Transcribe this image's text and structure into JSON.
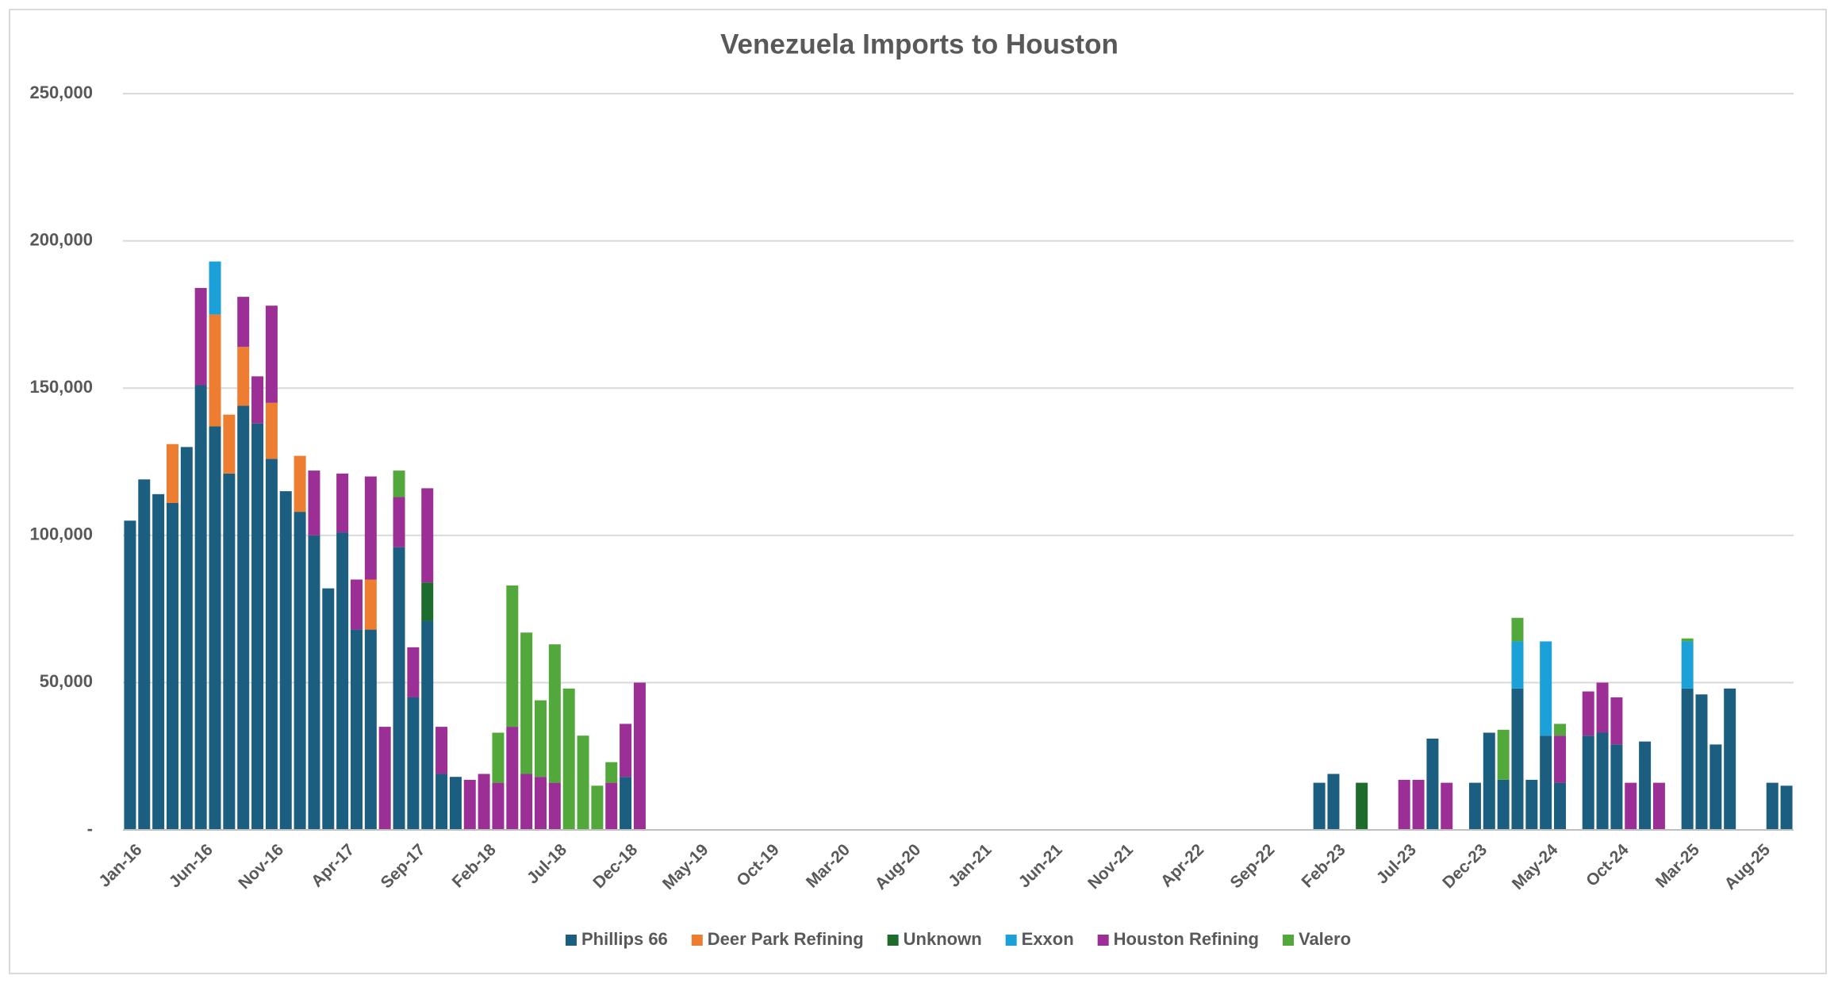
{
  "chart_data": {
    "type": "stacked_bar",
    "title": "Venezuela Imports to Houston",
    "categories": [
      "Jan-16",
      null,
      null,
      null,
      null,
      "Jun-16",
      null,
      null,
      null,
      null,
      "Nov-16",
      null,
      null,
      null,
      null,
      "Apr-17",
      null,
      null,
      null,
      null,
      "Sep-17",
      null,
      null,
      null,
      null,
      "Feb-18",
      null,
      null,
      null,
      null,
      "Jul-18",
      null,
      null,
      null,
      null,
      "Dec-18",
      null,
      null,
      null,
      null,
      "May-19",
      null,
      null,
      null,
      null,
      "Oct-19",
      null,
      null,
      null,
      null,
      "Mar-20",
      null,
      null,
      null,
      null,
      "Aug-20",
      null,
      null,
      null,
      null,
      "Jan-21",
      null,
      null,
      null,
      null,
      "Jun-21",
      null,
      null,
      null,
      null,
      "Nov-21",
      null,
      null,
      null,
      null,
      "Apr-22",
      null,
      null,
      null,
      null,
      "Sep-22",
      null,
      null,
      null,
      null,
      "Feb-23",
      null,
      null,
      null,
      null,
      "Jul-23",
      null,
      null,
      null,
      null,
      "Dec-23",
      null,
      null,
      null,
      null,
      "May-24",
      null,
      null,
      null,
      null,
      "Oct-24",
      null,
      null,
      null,
      null,
      "Mar-25",
      null,
      null,
      null,
      null,
      "Aug-25",
      null,
      null
    ],
    "series": [
      {
        "name": "Phillips 66",
        "color": "#1b5e80",
        "values": [
          105000,
          119000,
          114000,
          111000,
          130000,
          151000,
          137000,
          121000,
          144000,
          138000,
          126000,
          115000,
          108000,
          100000,
          82000,
          101000,
          68000,
          68000,
          null,
          96000,
          45000,
          71000,
          19000,
          18000,
          null,
          null,
          null,
          null,
          null,
          null,
          null,
          null,
          null,
          null,
          null,
          18000,
          null,
          null,
          null,
          null,
          null,
          null,
          null,
          null,
          null,
          null,
          null,
          null,
          null,
          null,
          null,
          null,
          null,
          null,
          null,
          null,
          null,
          null,
          null,
          null,
          null,
          null,
          null,
          null,
          null,
          null,
          null,
          null,
          null,
          null,
          null,
          null,
          null,
          null,
          null,
          null,
          null,
          null,
          null,
          null,
          null,
          null,
          null,
          null,
          16000,
          19000,
          null,
          null,
          null,
          null,
          null,
          null,
          31000,
          null,
          null,
          16000,
          33000,
          17000,
          48000,
          17000,
          32000,
          16000,
          null,
          32000,
          33000,
          29000,
          null,
          30000,
          null,
          null,
          48000,
          46000,
          29000,
          48000,
          null,
          null,
          16000,
          15000
        ]
      },
      {
        "name": "Deer Park Refining",
        "color": "#ed7d31",
        "values": [
          null,
          null,
          null,
          20000,
          null,
          null,
          38000,
          20000,
          20000,
          null,
          19000,
          null,
          19000,
          null,
          null,
          null,
          null,
          17000,
          null,
          null,
          null,
          null,
          null,
          null,
          null,
          null,
          null,
          null,
          null,
          null,
          null,
          null,
          null,
          null,
          null,
          null,
          null,
          null,
          null,
          null,
          null,
          null,
          null,
          null,
          null,
          null,
          null,
          null,
          null,
          null,
          null,
          null,
          null,
          null,
          null,
          null,
          null,
          null,
          null,
          null,
          null,
          null,
          null,
          null,
          null,
          null,
          null,
          null,
          null,
          null,
          null,
          null,
          null,
          null,
          null,
          null,
          null,
          null,
          null,
          null,
          null,
          null,
          null,
          null,
          null,
          null,
          null,
          null,
          null,
          null,
          null,
          null,
          null,
          null,
          null,
          null,
          null,
          null,
          null,
          null,
          null,
          null,
          null,
          null,
          null,
          null,
          null,
          null,
          null,
          null,
          null,
          null,
          null,
          null,
          null,
          null,
          null,
          null
        ]
      },
      {
        "name": "Unknown",
        "color": "#1e6b2e",
        "values": [
          null,
          null,
          null,
          null,
          null,
          null,
          null,
          null,
          null,
          null,
          null,
          null,
          null,
          null,
          null,
          null,
          null,
          null,
          null,
          null,
          null,
          13000,
          null,
          null,
          null,
          null,
          null,
          null,
          null,
          null,
          null,
          null,
          null,
          null,
          null,
          null,
          null,
          null,
          null,
          null,
          null,
          null,
          null,
          null,
          null,
          null,
          null,
          null,
          null,
          null,
          null,
          null,
          null,
          null,
          null,
          null,
          null,
          null,
          null,
          null,
          null,
          null,
          null,
          null,
          null,
          null,
          null,
          null,
          null,
          null,
          null,
          null,
          null,
          null,
          null,
          null,
          null,
          null,
          null,
          null,
          null,
          null,
          null,
          null,
          null,
          null,
          null,
          16000,
          null,
          null,
          null,
          null,
          null,
          null,
          null,
          null,
          null,
          null,
          null,
          null,
          null,
          null,
          null,
          null,
          null,
          null,
          null,
          null,
          null,
          null,
          null,
          null,
          null,
          null,
          null,
          null,
          null,
          null
        ]
      },
      {
        "name": "Exxon",
        "color": "#1ca0d8",
        "values": [
          null,
          null,
          null,
          null,
          null,
          null,
          18000,
          null,
          null,
          null,
          null,
          null,
          null,
          null,
          null,
          null,
          null,
          null,
          null,
          null,
          null,
          null,
          null,
          null,
          null,
          null,
          null,
          null,
          null,
          null,
          null,
          null,
          null,
          null,
          null,
          null,
          null,
          null,
          null,
          null,
          null,
          null,
          null,
          null,
          null,
          null,
          null,
          null,
          null,
          null,
          null,
          null,
          null,
          null,
          null,
          null,
          null,
          null,
          null,
          null,
          null,
          null,
          null,
          null,
          null,
          null,
          null,
          null,
          null,
          null,
          null,
          null,
          null,
          null,
          null,
          null,
          null,
          null,
          null,
          null,
          null,
          null,
          null,
          null,
          null,
          null,
          null,
          null,
          null,
          null,
          null,
          null,
          null,
          null,
          null,
          null,
          null,
          null,
          16000,
          null,
          32000,
          null,
          null,
          null,
          null,
          null,
          null,
          null,
          null,
          null,
          16000,
          null,
          null,
          null,
          null,
          null,
          null,
          null
        ]
      },
      {
        "name": "Houston Refining",
        "color": "#9b2f96",
        "values": [
          null,
          null,
          null,
          null,
          null,
          33000,
          null,
          null,
          17000,
          16000,
          33000,
          null,
          null,
          22000,
          null,
          20000,
          17000,
          35000,
          35000,
          17000,
          17000,
          32000,
          16000,
          null,
          17000,
          19000,
          16000,
          35000,
          19000,
          18000,
          16000,
          null,
          null,
          null,
          16000,
          18000,
          50000,
          null,
          null,
          null,
          null,
          null,
          null,
          null,
          null,
          null,
          null,
          null,
          null,
          null,
          null,
          null,
          null,
          null,
          null,
          null,
          null,
          null,
          null,
          null,
          null,
          null,
          null,
          null,
          null,
          null,
          null,
          null,
          null,
          null,
          null,
          null,
          null,
          null,
          null,
          null,
          null,
          null,
          null,
          null,
          null,
          null,
          null,
          null,
          null,
          null,
          null,
          null,
          null,
          null,
          17000,
          17000,
          null,
          16000,
          null,
          null,
          null,
          null,
          null,
          null,
          null,
          16000,
          null,
          15000,
          17000,
          16000,
          16000,
          null,
          16000,
          null,
          null,
          null,
          null,
          null,
          null,
          null,
          null,
          null
        ]
      },
      {
        "name": "Valero",
        "color": "#52a83a",
        "values": [
          null,
          null,
          null,
          null,
          null,
          null,
          null,
          null,
          null,
          null,
          null,
          null,
          null,
          null,
          null,
          null,
          null,
          null,
          null,
          9000,
          null,
          null,
          null,
          null,
          null,
          null,
          17000,
          48000,
          48000,
          26000,
          47000,
          48000,
          32000,
          15000,
          7000,
          null,
          null,
          null,
          null,
          null,
          null,
          null,
          null,
          null,
          null,
          null,
          null,
          null,
          null,
          null,
          null,
          null,
          null,
          null,
          null,
          null,
          null,
          null,
          null,
          null,
          null,
          null,
          null,
          null,
          null,
          null,
          null,
          null,
          null,
          null,
          null,
          null,
          null,
          null,
          null,
          null,
          null,
          null,
          null,
          null,
          null,
          null,
          null,
          null,
          null,
          null,
          null,
          null,
          null,
          null,
          null,
          null,
          null,
          null,
          null,
          null,
          null,
          17000,
          8000,
          null,
          null,
          4000,
          null,
          null,
          null,
          null,
          null,
          null,
          null,
          null,
          1000,
          null,
          null,
          null,
          null,
          null,
          null,
          null
        ]
      }
    ],
    "ylim": [
      0,
      250000
    ],
    "yticks": [
      {
        "value": 0,
        "label": "-"
      },
      {
        "value": 50000,
        "label": "50,000"
      },
      {
        "value": 100000,
        "label": "100,000"
      },
      {
        "value": 150000,
        "label": "150,000"
      },
      {
        "value": 200000,
        "label": "200,000"
      },
      {
        "value": 250000,
        "label": "250,000"
      }
    ],
    "grid": true,
    "legend": "bottom"
  }
}
